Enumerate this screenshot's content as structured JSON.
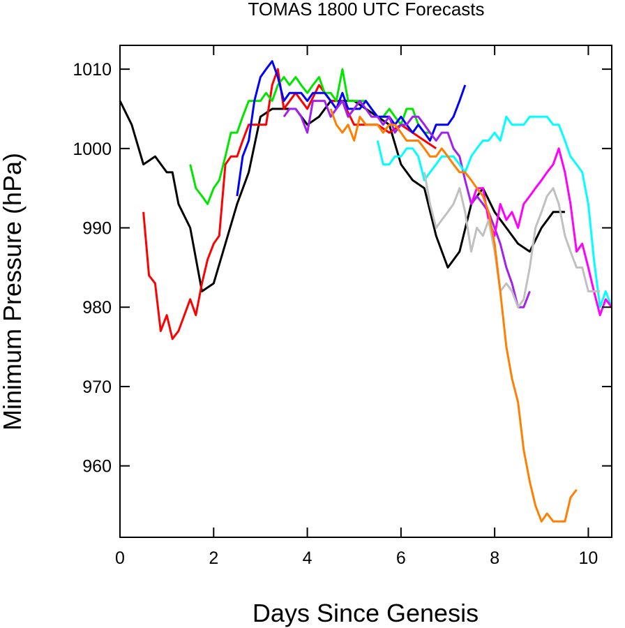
{
  "chart_data": {
    "type": "line",
    "title": "TOMAS 1800 UTC Forecasts",
    "xlabel": "Days Since Genesis",
    "ylabel": "Minimum Pressure (hPa)",
    "xlim": [
      0,
      10.5
    ],
    "ylim": [
      951,
      1013
    ],
    "xticks": [
      0,
      2,
      4,
      6,
      8,
      10
    ],
    "yticks": [
      960,
      970,
      980,
      990,
      1000,
      1010
    ],
    "xtick_labels": [
      "0",
      "2",
      "4",
      "6",
      "8",
      "10"
    ],
    "ytick_labels": [
      "960",
      "970",
      "980",
      "990",
      "1000",
      "1010"
    ],
    "grid": false,
    "legend": false,
    "series": [
      {
        "color": "#000000",
        "x": [
          0,
          0.25,
          0.5,
          0.75,
          1.0,
          1.12,
          1.25,
          1.5,
          1.75,
          2.0,
          2.25,
          2.5,
          2.75,
          3.0,
          3.25,
          3.5,
          3.75,
          4.0,
          4.25,
          4.5,
          4.75,
          5.0,
          5.25,
          5.5,
          5.75,
          6.0,
          6.25,
          6.5,
          6.75,
          7.0,
          7.25,
          7.5,
          7.75,
          8.0,
          8.25,
          8.5,
          8.75,
          9.0,
          9.25,
          9.5
        ],
        "y": [
          1006,
          1003,
          998,
          999,
          997,
          997,
          993,
          990,
          982,
          983,
          988,
          993,
          997,
          1004,
          1005,
          1005,
          1005,
          1003,
          1004,
          1006,
          1006,
          1006,
          1005,
          1004,
          1003,
          998,
          996,
          995,
          989,
          985,
          987,
          993,
          995,
          992,
          990,
          988,
          987,
          990,
          992,
          992
        ]
      },
      {
        "color": "#ff0000",
        "x": [
          0.5,
          0.62,
          0.75,
          0.87,
          1.0,
          1.12,
          1.25,
          1.5,
          1.62,
          1.75,
          1.87,
          2.0,
          2.12,
          2.25,
          2.37,
          2.5,
          2.62,
          2.75,
          3.0,
          3.12,
          3.25,
          3.37,
          3.5,
          3.75,
          4.0,
          4.25,
          4.5,
          4.75,
          5.0,
          5.25,
          5.5,
          5.75,
          6.0,
          6.25,
          6.5,
          6.75
        ],
        "y": [
          992,
          984,
          983,
          977,
          979,
          976,
          977,
          981,
          979,
          983,
          986,
          988,
          989,
          998,
          999,
          999,
          1001,
          1003,
          1003,
          1003,
          1008,
          1010,
          1005,
          1007,
          1005,
          1008,
          1006,
          1006,
          1003,
          1003,
          1003,
          1002,
          1003,
          1002,
          1001,
          1000
        ]
      },
      {
        "color": "#00e600",
        "x": [
          1.5,
          1.62,
          1.75,
          1.87,
          2.0,
          2.12,
          2.25,
          2.37,
          2.5,
          2.62,
          2.75,
          3.0,
          3.12,
          3.25,
          3.37,
          3.5,
          3.62,
          3.75,
          3.87,
          4.0,
          4.12,
          4.25,
          4.37,
          4.5,
          4.62,
          4.75,
          4.87,
          5.0,
          5.12,
          5.25,
          5.37,
          5.5,
          5.62,
          5.75,
          5.87,
          6.0,
          6.12,
          6.25,
          6.37,
          6.5,
          6.62
        ],
        "y": [
          998,
          995,
          994,
          993,
          995,
          996,
          999,
          1002,
          1002,
          1004,
          1006,
          1006,
          1007,
          1006,
          1008,
          1009,
          1008,
          1009,
          1008,
          1007,
          1008,
          1009,
          1007,
          1007,
          1006,
          1010,
          1006,
          1006,
          1006,
          1006,
          1005,
          1004,
          1004,
          1005,
          1004,
          1003,
          1005,
          1005,
          1003,
          1002,
          1002
        ]
      },
      {
        "color": "#0000ff",
        "x": [
          2.5,
          2.62,
          2.75,
          2.87,
          3.0,
          3.12,
          3.25,
          3.37,
          3.5,
          3.62,
          3.75,
          3.87,
          4.0,
          4.12,
          4.25,
          4.37,
          4.5,
          4.62,
          4.75,
          4.87,
          5.0,
          5.12,
          5.25,
          5.37,
          5.5,
          5.62,
          5.75,
          5.87,
          6.0,
          6.12,
          6.25,
          6.37,
          6.5,
          6.62,
          6.75,
          6.87,
          7.0,
          7.12,
          7.25,
          7.37
        ],
        "y": [
          994,
          999,
          1001,
          1006,
          1009,
          1010,
          1011,
          1009,
          1006,
          1007,
          1007,
          1007,
          1006,
          1007,
          1007,
          1007,
          1006,
          1005,
          1007,
          1005,
          1005,
          1005,
          1006,
          1005,
          1004,
          1004,
          1004,
          1003,
          1004,
          1003,
          1002,
          1003,
          1002,
          1001,
          1003,
          1003,
          1003,
          1004,
          1006,
          1008
        ]
      },
      {
        "color": "#a020f0",
        "x": [
          3.5,
          3.62,
          3.75,
          3.87,
          4.0,
          4.12,
          4.25,
          4.37,
          4.5,
          4.62,
          4.75,
          4.87,
          5.0,
          5.12,
          5.25,
          5.37,
          5.5,
          5.62,
          5.75,
          5.87,
          6.0,
          6.12,
          6.25,
          6.37,
          6.5,
          6.62,
          6.75,
          6.87,
          7.0,
          7.12,
          7.25,
          7.37,
          7.5,
          7.62,
          7.75,
          7.87,
          8.0,
          8.12,
          8.25,
          8.37,
          8.5,
          8.62,
          8.75
        ],
        "y": [
          1004,
          1005,
          1005,
          1004,
          1002,
          1006,
          1006,
          1006,
          1004,
          1005,
          1006,
          1004,
          1005,
          1006,
          1005,
          1004,
          1004,
          1003,
          1004,
          1002,
          1003,
          1003,
          1004,
          1004,
          1003,
          1002,
          1001,
          1002,
          1002,
          1000,
          999,
          996,
          993,
          994,
          993,
          992,
          990,
          988,
          985,
          983,
          980,
          980,
          982
        ]
      },
      {
        "color": "#00ffff",
        "x": [
          5.5,
          5.62,
          5.75,
          5.87,
          6.0,
          6.12,
          6.25,
          6.37,
          6.5,
          6.62,
          6.75,
          6.87,
          7.0,
          7.12,
          7.25,
          7.37,
          7.5,
          7.62,
          7.75,
          7.87,
          8.0,
          8.12,
          8.25,
          8.37,
          8.5,
          8.62,
          8.75,
          8.87,
          9.0,
          9.12,
          9.25,
          9.37,
          9.5,
          9.62,
          9.75,
          9.87,
          10.0,
          10.12,
          10.25,
          10.37,
          10.5
        ],
        "y": [
          1001,
          998,
          998,
          999,
          999,
          1000,
          1000,
          999,
          996,
          997,
          998,
          999,
          999,
          999,
          998,
          997,
          999,
          1000,
          1001,
          1001,
          1002,
          1001,
          1004,
          1003,
          1003,
          1003,
          1004,
          1004,
          1004,
          1004,
          1003,
          1003,
          1001,
          999,
          998,
          997,
          993,
          986,
          980,
          982,
          980
        ]
      },
      {
        "color": "#ff00ff",
        "x": [
          7.5,
          7.62,
          7.75,
          7.87,
          8.0,
          8.12,
          8.25,
          8.37,
          8.5,
          8.62,
          8.75,
          8.87,
          9.0,
          9.12,
          9.25,
          9.37,
          9.5,
          9.62,
          9.75,
          9.87,
          10.0,
          10.12,
          10.25,
          10.37,
          10.5
        ],
        "y": [
          993,
          995,
          995,
          991,
          989,
          993,
          991,
          992,
          990,
          993,
          994,
          995,
          996,
          997,
          998,
          1000,
          997,
          993,
          987,
          988,
          985,
          982,
          979,
          981,
          980
        ]
      },
      {
        "color": "#c0c0c0",
        "x": [
          6.5,
          6.62,
          6.75,
          6.87,
          7.0,
          7.12,
          7.25,
          7.37,
          7.5,
          7.62,
          7.75,
          7.87,
          8.0,
          8.12,
          8.25,
          8.37,
          8.5,
          8.62,
          8.75,
          8.87,
          9.0,
          9.12,
          9.25,
          9.37,
          9.5,
          9.62,
          9.75,
          9.87,
          10.0,
          10.12,
          10.25
        ],
        "y": [
          997,
          993,
          990,
          991,
          992,
          993,
          995,
          992,
          987,
          990,
          989,
          991,
          987,
          982,
          983,
          982,
          980,
          981,
          985,
          990,
          992,
          994,
          995,
          993,
          989,
          987,
          985,
          985,
          982,
          982,
          982
        ]
      },
      {
        "color": "#ff8000",
        "x": [
          4.5,
          4.62,
          4.75,
          4.87,
          5.0,
          5.12,
          5.25,
          5.37,
          5.5,
          5.62,
          5.75,
          5.87,
          6.0,
          6.12,
          6.25,
          6.37,
          6.5,
          6.62,
          6.75,
          6.87,
          7.0,
          7.12,
          7.25,
          7.37,
          7.5,
          7.62,
          7.75,
          7.87,
          8.0,
          8.12,
          8.25,
          8.37,
          8.5,
          8.62,
          8.75,
          8.87,
          9.0,
          9.12,
          9.25,
          9.37,
          9.5,
          9.62,
          9.75
        ],
        "y": [
          1005,
          1003,
          1002,
          1003,
          1001,
          1004,
          1003,
          1003,
          1003,
          1002,
          1003,
          1003,
          1002,
          1001,
          1001,
          1001,
          1000,
          999,
          999,
          1000,
          999,
          998,
          997,
          997,
          996,
          995,
          994,
          992,
          988,
          982,
          975,
          971,
          968,
          962,
          958,
          955,
          953,
          954,
          953,
          953,
          953,
          956,
          957
        ]
      }
    ]
  }
}
